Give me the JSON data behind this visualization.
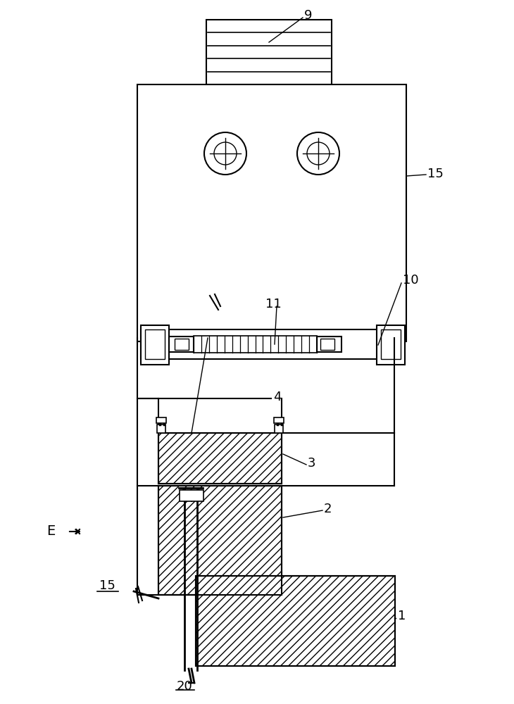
{
  "bg_color": "#ffffff",
  "line_color": "#000000",
  "figsize": [
    7.3,
    10.0
  ],
  "dpi": 100,
  "lw": 1.5
}
